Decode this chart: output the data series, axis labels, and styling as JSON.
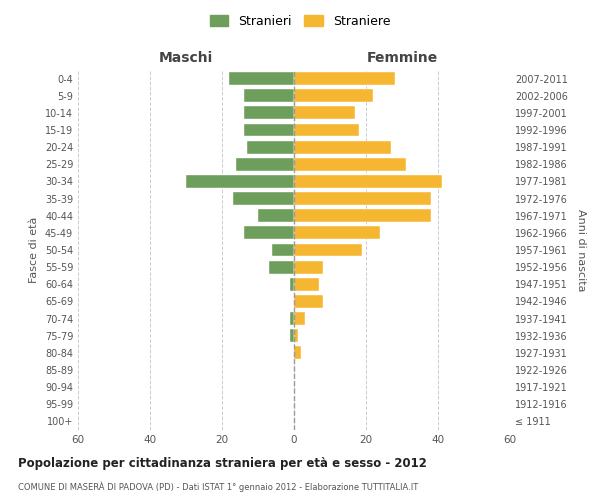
{
  "age_groups": [
    "100+",
    "95-99",
    "90-94",
    "85-89",
    "80-84",
    "75-79",
    "70-74",
    "65-69",
    "60-64",
    "55-59",
    "50-54",
    "45-49",
    "40-44",
    "35-39",
    "30-34",
    "25-29",
    "20-24",
    "15-19",
    "10-14",
    "5-9",
    "0-4"
  ],
  "birth_years": [
    "≤ 1911",
    "1912-1916",
    "1917-1921",
    "1922-1926",
    "1927-1931",
    "1932-1936",
    "1937-1941",
    "1942-1946",
    "1947-1951",
    "1952-1956",
    "1957-1961",
    "1962-1966",
    "1967-1971",
    "1972-1976",
    "1977-1981",
    "1982-1986",
    "1987-1991",
    "1992-1996",
    "1997-2001",
    "2002-2006",
    "2007-2011"
  ],
  "maschi": [
    0,
    0,
    0,
    0,
    0,
    1,
    1,
    0,
    1,
    7,
    6,
    14,
    10,
    17,
    30,
    16,
    13,
    14,
    14,
    14,
    18
  ],
  "femmine": [
    0,
    0,
    0,
    0,
    2,
    1,
    3,
    8,
    7,
    8,
    19,
    24,
    38,
    38,
    41,
    31,
    27,
    18,
    17,
    22,
    28
  ],
  "color_maschi": "#6d9e5b",
  "color_femmine": "#f5b731",
  "xlim": 60,
  "title": "Popolazione per cittadinanza straniera per età e sesso - 2012",
  "subtitle": "COMUNE DI MASERÀ DI PADOVA (PD) - Dati ISTAT 1° gennaio 2012 - Elaborazione TUTTITALIA.IT",
  "ylabel_left": "Fasce di età",
  "ylabel_right": "Anni di nascita",
  "xlabel_maschi": "Maschi",
  "xlabel_femmine": "Femmine",
  "legend_maschi": "Stranieri",
  "legend_femmine": "Straniere",
  "background_color": "#ffffff",
  "grid_color": "#cccccc"
}
